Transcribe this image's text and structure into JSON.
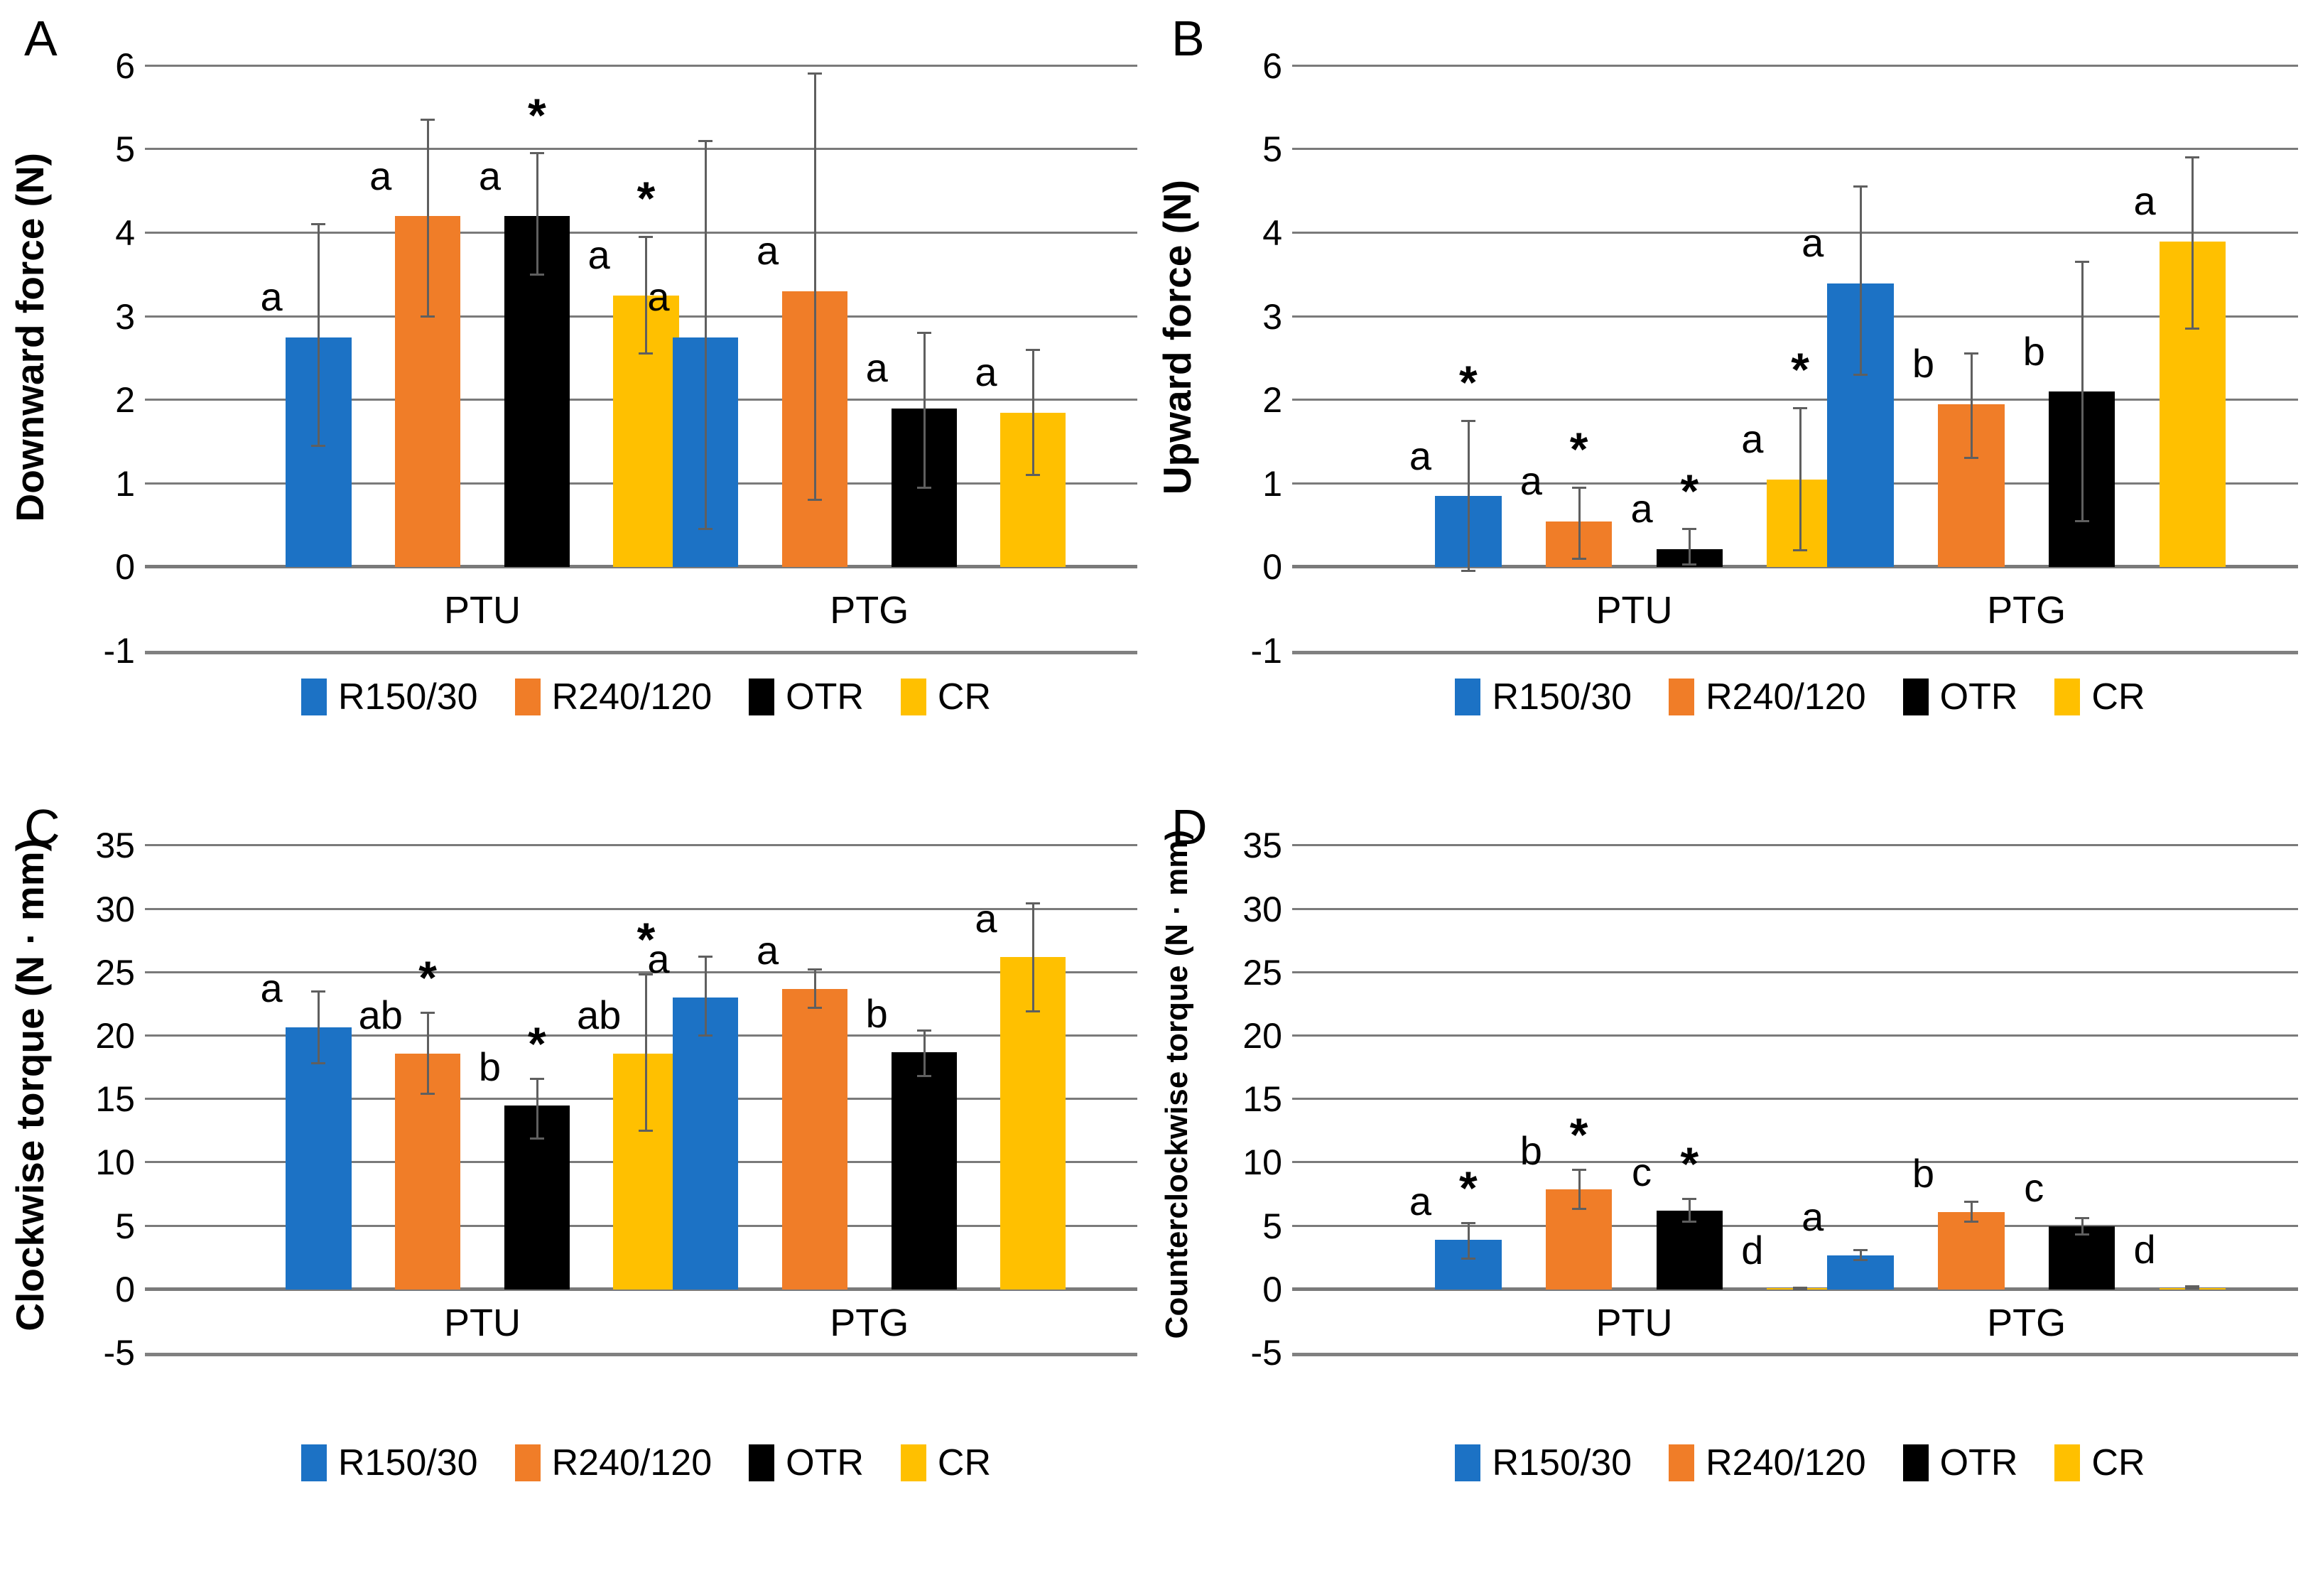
{
  "figure": {
    "series": [
      {
        "name": "R150/30",
        "color": "#1C72C5"
      },
      {
        "name": "R240/120",
        "color": "#F07D28"
      },
      {
        "name": "OTR",
        "color": "#000000"
      },
      {
        "name": "CR",
        "color": "#FFC000"
      }
    ],
    "groups": [
      "PTU",
      "PTG"
    ],
    "grid_color": "#7a7a7a",
    "error_bar_color": "#5f5f5f",
    "star_symbol": "*"
  },
  "chart_data": [
    {
      "panel": "A",
      "type": "bar",
      "ylabel": "Downward force (N)",
      "ylim": [
        -1,
        6
      ],
      "yticks": [
        6,
        5,
        4,
        3,
        2,
        1,
        0,
        -1
      ],
      "categories": [
        "PTU",
        "PTG"
      ],
      "legend": [
        "R150/30",
        "R240/120",
        "OTR",
        "CR"
      ],
      "groups": [
        {
          "label": "PTU",
          "bars": [
            {
              "series": "R150/30",
              "value": 2.75,
              "err_lo": 1.45,
              "err_hi": 4.1,
              "letter": "a",
              "star": false
            },
            {
              "series": "R240/120",
              "value": 4.2,
              "err_lo": 3.0,
              "err_hi": 5.35,
              "letter": "a",
              "star": false
            },
            {
              "series": "OTR",
              "value": 4.2,
              "err_lo": 3.5,
              "err_hi": 4.95,
              "letter": "a",
              "star": true
            },
            {
              "series": "CR",
              "value": 3.25,
              "err_lo": 2.55,
              "err_hi": 3.95,
              "letter": "a",
              "star": true
            }
          ]
        },
        {
          "label": "PTG",
          "bars": [
            {
              "series": "R150/30",
              "value": 2.75,
              "err_lo": 0.45,
              "err_hi": 5.1,
              "letter": "a",
              "star": false
            },
            {
              "series": "R240/120",
              "value": 3.3,
              "err_lo": 0.8,
              "err_hi": 5.9,
              "letter": "a",
              "star": false
            },
            {
              "series": "OTR",
              "value": 1.9,
              "err_lo": 0.95,
              "err_hi": 2.8,
              "letter": "a",
              "star": false
            },
            {
              "series": "CR",
              "value": 1.85,
              "err_lo": 1.1,
              "err_hi": 2.6,
              "letter": "a",
              "star": false
            }
          ]
        }
      ]
    },
    {
      "panel": "B",
      "type": "bar",
      "ylabel": "Upward force (N)",
      "ylim": [
        -1,
        6
      ],
      "yticks": [
        6,
        5,
        4,
        3,
        2,
        1,
        0,
        -1
      ],
      "categories": [
        "PTU",
        "PTG"
      ],
      "legend": [
        "R150/30",
        "R240/120",
        "OTR",
        "CR"
      ],
      "groups": [
        {
          "label": "PTU",
          "bars": [
            {
              "series": "R150/30",
              "value": 0.85,
              "err_lo": -0.05,
              "err_hi": 1.75,
              "letter": "a",
              "star": true
            },
            {
              "series": "R240/120",
              "value": 0.55,
              "err_lo": 0.1,
              "err_hi": 0.95,
              "letter": "a",
              "star": true
            },
            {
              "series": "OTR",
              "value": 0.22,
              "err_lo": 0.03,
              "err_hi": 0.45,
              "letter": "a",
              "star": true
            },
            {
              "series": "CR",
              "value": 1.05,
              "err_lo": 0.2,
              "err_hi": 1.9,
              "letter": "a",
              "star": true
            }
          ]
        },
        {
          "label": "PTG",
          "bars": [
            {
              "series": "R150/30",
              "value": 3.4,
              "err_lo": 2.3,
              "err_hi": 4.55,
              "letter": "a",
              "star": false
            },
            {
              "series": "R240/120",
              "value": 1.95,
              "err_lo": 1.3,
              "err_hi": 2.55,
              "letter": "b",
              "star": false
            },
            {
              "series": "OTR",
              "value": 2.1,
              "err_lo": 0.55,
              "err_hi": 3.65,
              "letter": "b",
              "star": false
            },
            {
              "series": "CR",
              "value": 3.9,
              "err_lo": 2.85,
              "err_hi": 4.9,
              "letter": "a",
              "star": false
            }
          ]
        }
      ]
    },
    {
      "panel": "C",
      "type": "bar",
      "ylabel": "Clockwise torque (N · mm)",
      "ylim": [
        -5,
        35
      ],
      "yticks": [
        35,
        30,
        25,
        20,
        15,
        10,
        5,
        0,
        -5
      ],
      "categories": [
        "PTU",
        "PTG"
      ],
      "legend": [
        "R150/30",
        "R240/120",
        "OTR",
        "CR"
      ],
      "groups": [
        {
          "label": "PTU",
          "bars": [
            {
              "series": "R150/30",
              "value": 20.7,
              "err_lo": 17.8,
              "err_hi": 23.5,
              "letter": "a",
              "star": false
            },
            {
              "series": "R240/120",
              "value": 18.6,
              "err_lo": 15.4,
              "err_hi": 21.8,
              "letter": "ab",
              "star": true
            },
            {
              "series": "OTR",
              "value": 14.5,
              "err_lo": 11.9,
              "err_hi": 16.6,
              "letter": "b",
              "star": true
            },
            {
              "series": "CR",
              "value": 18.6,
              "err_lo": 12.5,
              "err_hi": 24.8,
              "letter": "ab",
              "star": true
            }
          ]
        },
        {
          "label": "PTG",
          "bars": [
            {
              "series": "R150/30",
              "value": 23.0,
              "err_lo": 20.0,
              "err_hi": 26.2,
              "letter": "a",
              "star": false
            },
            {
              "series": "R240/120",
              "value": 23.7,
              "err_lo": 22.2,
              "err_hi": 25.2,
              "letter": "a",
              "star": false
            },
            {
              "series": "OTR",
              "value": 18.7,
              "err_lo": 16.8,
              "err_hi": 20.4,
              "letter": "b",
              "star": false
            },
            {
              "series": "CR",
              "value": 26.2,
              "err_lo": 21.9,
              "err_hi": 30.4,
              "letter": "a",
              "star": false
            }
          ]
        }
      ]
    },
    {
      "panel": "D",
      "type": "bar",
      "ylabel": "Counterclockwise torque (N · mm)",
      "ylim": [
        -5,
        35
      ],
      "yticks": [
        35,
        30,
        25,
        20,
        15,
        10,
        5,
        0,
        -5
      ],
      "categories": [
        "PTU",
        "PTG"
      ],
      "legend": [
        "R150/30",
        "R240/120",
        "OTR",
        "CR"
      ],
      "groups": [
        {
          "label": "PTU",
          "bars": [
            {
              "series": "R150/30",
              "value": 3.9,
              "err_lo": 2.4,
              "err_hi": 5.2,
              "letter": "a",
              "star": true
            },
            {
              "series": "R240/120",
              "value": 7.9,
              "err_lo": 6.3,
              "err_hi": 9.4,
              "letter": "b",
              "star": true
            },
            {
              "series": "OTR",
              "value": 6.2,
              "err_lo": 5.3,
              "err_hi": 7.1,
              "letter": "c",
              "star": true
            },
            {
              "series": "CR",
              "value": 0.05,
              "err_lo": 0.0,
              "err_hi": 0.12,
              "letter": "d",
              "star": false
            }
          ]
        },
        {
          "label": "PTG",
          "bars": [
            {
              "series": "R150/30",
              "value": 2.7,
              "err_lo": 2.3,
              "err_hi": 3.1,
              "letter": "a",
              "star": false
            },
            {
              "series": "R240/120",
              "value": 6.1,
              "err_lo": 5.3,
              "err_hi": 6.9,
              "letter": "b",
              "star": false
            },
            {
              "series": "OTR",
              "value": 5.0,
              "err_lo": 4.3,
              "err_hi": 5.6,
              "letter": "c",
              "star": false
            },
            {
              "series": "CR",
              "value": 0.1,
              "err_lo": 0.02,
              "err_hi": 0.2,
              "letter": "d",
              "star": false
            }
          ]
        }
      ]
    }
  ]
}
